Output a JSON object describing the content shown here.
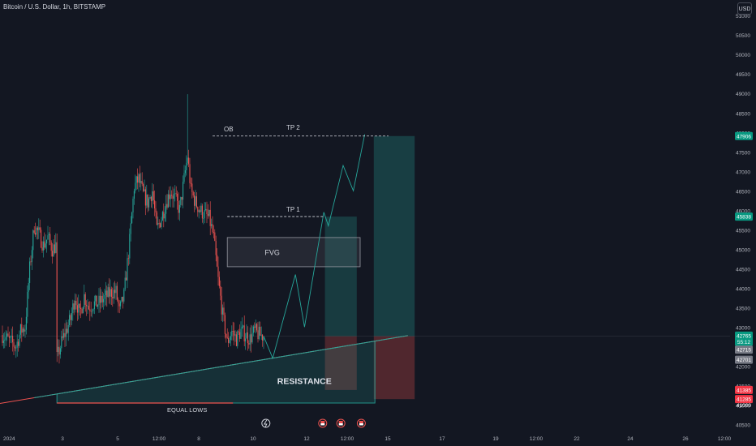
{
  "header": {
    "symbol": "Bitcoin / U.S. Dollar, 1h, BITSTAMP",
    "currency": "USD"
  },
  "colors": {
    "bull": "#26a69a",
    "bear": "#ef5350",
    "background": "#131722",
    "text": "#d1d4dc"
  },
  "chart_data": {
    "type": "candlestick",
    "ylim": [
      40300,
      51400
    ],
    "y_ticks": [
      40500,
      41000,
      41500,
      42000,
      42500,
      43000,
      43500,
      44000,
      44500,
      45000,
      45500,
      46000,
      46500,
      47000,
      47500,
      48000,
      48500,
      49000,
      49500,
      50000,
      50500,
      51000
    ],
    "y_tick_labels": [
      "40500",
      "41000",
      "41500",
      "42000",
      "42500",
      "43000",
      "43500",
      "44000",
      "44500",
      "45000",
      "45500",
      "46000",
      "46500",
      "47000",
      "47500",
      "48000",
      "48500",
      "49000",
      "49500",
      "50000",
      "50500",
      "51000"
    ],
    "x_tick_labels": [
      "2024",
      "3",
      "5",
      "12:00",
      "8",
      "10",
      "12",
      "12:00",
      "15",
      "17",
      "19",
      "12:00",
      "22",
      "24",
      "26",
      "12:00"
    ],
    "price_badges": [
      {
        "label": "47906",
        "value": 47906,
        "color": "#089981"
      },
      {
        "label": "45838",
        "value": 45838,
        "color": "#089981"
      },
      {
        "label": "42765",
        "value": 42780,
        "color": "#089981"
      },
      {
        "label": "55:12",
        "value": 42620,
        "color": "#089981"
      },
      {
        "label": "42715",
        "value": 42420,
        "color": "#787b86"
      },
      {
        "label": "42701",
        "value": 42160,
        "color": "#787b86"
      },
      {
        "label": "41385",
        "value": 41385,
        "color": "#f23645"
      },
      {
        "label": "41285",
        "value": 41150,
        "color": "#f23645"
      },
      {
        "label": "41000",
        "value": 41000,
        "color": "none"
      }
    ],
    "annotations": {
      "ob": "OB",
      "tp2": "TP 2",
      "tp1": "TP 1",
      "fvg": "FVG",
      "resistance": "RESISTANCE",
      "equal_lows": "EQUAL LOWS"
    },
    "levels": {
      "tp2": 47906,
      "tp1": 45838,
      "current": 42765,
      "stop": 41385
    },
    "candles": {
      "count": 300,
      "waypoints": [
        [
          0,
          42800
        ],
        [
          8,
          42600
        ],
        [
          12,
          42500
        ],
        [
          16,
          42900
        ],
        [
          20,
          43000
        ],
        [
          24,
          44500
        ],
        [
          28,
          45600
        ],
        [
          32,
          45400
        ],
        [
          36,
          45100
        ],
        [
          40,
          45300
        ],
        [
          44,
          45000
        ],
        [
          47,
          45100
        ],
        [
          48,
          42200
        ],
        [
          52,
          42600
        ],
        [
          56,
          42900
        ],
        [
          60,
          43200
        ],
        [
          64,
          43800
        ],
        [
          68,
          43300
        ],
        [
          72,
          43800
        ],
        [
          76,
          43500
        ],
        [
          80,
          43600
        ],
        [
          84,
          43600
        ],
        [
          88,
          43700
        ],
        [
          92,
          43800
        ],
        [
          96,
          43900
        ],
        [
          100,
          43900
        ],
        [
          103,
          43400
        ],
        [
          107,
          43800
        ],
        [
          112,
          45200
        ],
        [
          116,
          46600
        ],
        [
          120,
          46800
        ],
        [
          124,
          46400
        ],
        [
          128,
          46200
        ],
        [
          132,
          46500
        ],
        [
          136,
          45500
        ],
        [
          140,
          45800
        ],
        [
          144,
          46200
        ],
        [
          148,
          46500
        ],
        [
          152,
          46300
        ],
        [
          156,
          46000
        ],
        [
          160,
          46800
        ],
        [
          163,
          47400
        ],
        [
          166,
          46500
        ],
        [
          170,
          46200
        ],
        [
          174,
          46000
        ],
        [
          178,
          45900
        ],
        [
          182,
          45800
        ],
        [
          186,
          45300
        ],
        [
          190,
          44200
        ],
        [
          194,
          43300
        ],
        [
          198,
          42600
        ],
        [
          202,
          42900
        ],
        [
          206,
          42700
        ],
        [
          210,
          42900
        ],
        [
          214,
          42800
        ],
        [
          218,
          42700
        ],
        [
          222,
          42900
        ],
        [
          226,
          42800
        ],
        [
          230,
          42770
        ]
      ]
    },
    "projection_path": [
      [
        230,
        42770
      ],
      [
        238,
        42200
      ],
      [
        258,
        44350
      ],
      [
        266,
        43000
      ],
      [
        283,
        45950
      ],
      [
        287,
        45600
      ],
      [
        300,
        47150
      ],
      [
        309,
        46500
      ],
      [
        319,
        47950
      ]
    ],
    "resistance_line": {
      "from": [
        0,
        41050
      ],
      "to": [
        357,
        42780
      ]
    }
  }
}
